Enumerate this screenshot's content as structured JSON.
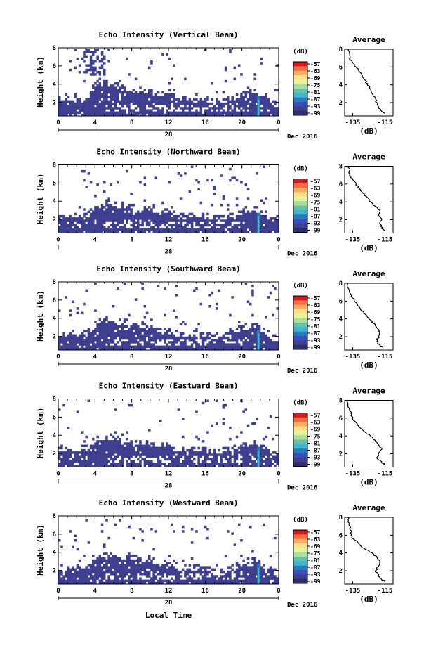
{
  "chart_data": {
    "type": "heatmap",
    "panels": [
      {
        "title": "Echo Intensity (Vertical Beam)",
        "beam": "vertical"
      },
      {
        "title": "Echo Intensity (Northward Beam)",
        "beam": "northward"
      },
      {
        "title": "Echo Intensity (Southward Beam)",
        "beam": "southward"
      },
      {
        "title": "Echo Intensity (Eastward Beam)",
        "beam": "eastward"
      },
      {
        "title": "Echo Intensity (Westward Beam)",
        "beam": "westward"
      }
    ],
    "ylabel": "Height (km)",
    "xlabel": "Local Time",
    "y_ticks": [
      "2",
      "4",
      "6",
      "8"
    ],
    "ylim": [
      0.5,
      8
    ],
    "x_ticks": [
      "0",
      "4",
      "8",
      "12",
      "16",
      "20",
      "0"
    ],
    "xlim": [
      0,
      24
    ],
    "day_label": "28",
    "date_label": "Dec 2016",
    "colorbar": {
      "title": "(dB)",
      "labels": [
        "-57",
        "-63",
        "-69",
        "-75",
        "-81",
        "-87",
        "-93",
        "-99"
      ],
      "colors": [
        "#d7191c",
        "#f46d43",
        "#fdae61",
        "#fee08b",
        "#e6f598",
        "#abdda4",
        "#66c2a5",
        "#3fb6d4",
        "#2c7bb6",
        "#3b4cc0",
        "#3f3f8f",
        "#2e2e6e"
      ]
    },
    "average": {
      "title": "Average",
      "xlabel": "(dB)",
      "x_ticks": [
        "-135",
        "-115"
      ],
      "xlim": [
        -140,
        -110
      ],
      "y_ticks": [
        "2",
        "4",
        "6",
        "8"
      ],
      "ylim": [
        0.5,
        8
      ],
      "profiles": [
        {
          "beam": "vertical",
          "height_km": [
            0.8,
            1.0,
            1.5,
            2.0,
            2.5,
            3.0,
            3.5,
            4.0,
            4.5,
            5.0,
            5.5,
            6.0,
            6.5,
            7.0,
            7.5,
            8.0
          ],
          "db": [
            -115,
            -117,
            -119,
            -120,
            -121,
            -123,
            -124,
            -126,
            -127,
            -129,
            -131,
            -133,
            -135,
            -137,
            -137,
            -138
          ]
        },
        {
          "beam": "northward",
          "height_km": [
            0.8,
            1.0,
            1.5,
            2.0,
            2.5,
            3.0,
            3.5,
            4.0,
            4.5,
            5.0,
            5.5,
            6.0,
            6.5,
            7.0,
            7.5,
            8.0
          ],
          "db": [
            -115,
            -117,
            -118,
            -117,
            -119,
            -118,
            -121,
            -124,
            -126,
            -129,
            -131,
            -133,
            -135,
            -137,
            -137,
            -138
          ]
        },
        {
          "beam": "southward",
          "height_km": [
            0.8,
            1.0,
            1.5,
            2.0,
            2.5,
            3.0,
            3.5,
            4.0,
            4.5,
            5.0,
            5.5,
            6.0,
            6.5,
            7.0,
            7.5,
            8.0
          ],
          "db": [
            -116,
            -118,
            -120,
            -119,
            -118,
            -120,
            -122,
            -125,
            -127,
            -130,
            -132,
            -134,
            -136,
            -137,
            -138,
            -138
          ]
        },
        {
          "beam": "eastward",
          "height_km": [
            0.8,
            1.0,
            1.5,
            2.0,
            2.5,
            3.0,
            3.5,
            4.0,
            4.5,
            5.0,
            5.5,
            6.0,
            6.5,
            7.0,
            7.5,
            8.0
          ],
          "db": [
            -115,
            -117,
            -120,
            -119,
            -117,
            -119,
            -121,
            -124,
            -128,
            -131,
            -133,
            -135,
            -136,
            -137,
            -138,
            -138
          ]
        },
        {
          "beam": "westward",
          "height_km": [
            0.8,
            1.0,
            1.5,
            2.0,
            2.5,
            3.0,
            3.5,
            4.0,
            4.5,
            5.0,
            5.5,
            6.0,
            6.5,
            7.0,
            7.5,
            8.0
          ],
          "db": [
            -115,
            -117,
            -119,
            -121,
            -119,
            -118,
            -120,
            -123,
            -128,
            -131,
            -134,
            -136,
            -136,
            -137,
            -138,
            -138
          ]
        }
      ]
    },
    "grid": false,
    "legend": "colorbar-right"
  }
}
